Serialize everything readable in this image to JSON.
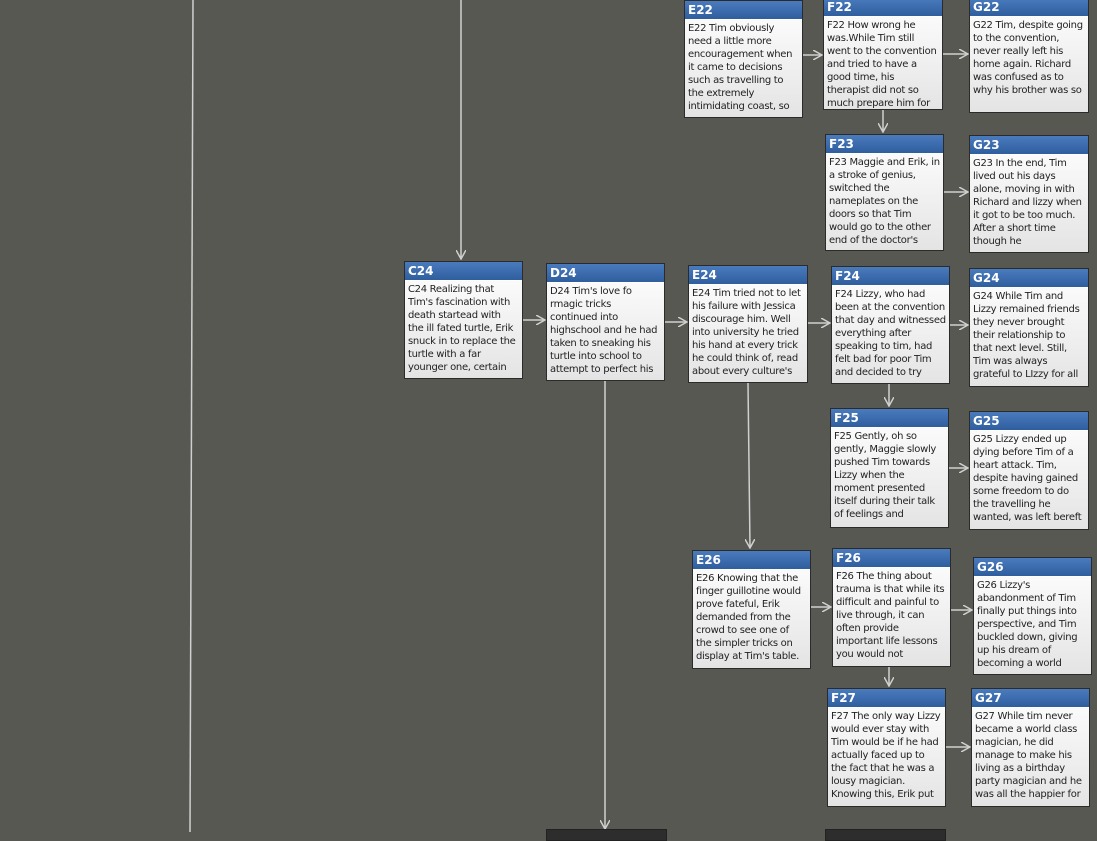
{
  "nodes": [
    {
      "id": "E22",
      "text": "E22 Tim obviously need a little more encouragement when it came to decisions such as travelling to the extremely intimidating coast, so"
    },
    {
      "id": "F22",
      "text": "F22 How wrong he was.While Tim still went to the convention and tried to have a good time, his therapist did not so much prepare him for"
    },
    {
      "id": "G22",
      "text": "G22 Tim, despite going to the convention, never really left his home again. Richard was confused as to why his brother was so"
    },
    {
      "id": "F23",
      "text": "F23 Maggie and Erik, in a stroke of genius, switched the nameplates on the doors so that Tim would go to the other end of the doctor's"
    },
    {
      "id": "G23",
      "text": "G23 In the end, Tim lived out his days alone, moving in with Richard and lizzy when it got to be too much. After a short time though he"
    },
    {
      "id": "C24",
      "text": "C24 Realizing that Tim's fascination with death startead with the ill fated turtle, Erik snuck in to replace the turtle with a far younger one, certain"
    },
    {
      "id": "D24",
      "text": "D24 Tim's love fo rmagic tricks continued into highschool and he had taken to sneaking his turtle into school to attempt to perfect his"
    },
    {
      "id": "E24",
      "text": "E24 Tim tried not to let his failure with Jessica discourage him. Well into university he tried his hand at every trick he could think of, read about every culture's"
    },
    {
      "id": "F24",
      "text": "F24 Lizzy, who had been at the convention that day and witnessed everything after speaking to tim, had felt bad for poor Tim and decided to try"
    },
    {
      "id": "G24",
      "text": "G24 While Tim and Lizzy remained friends they never brought their relationship to that next level. Still, Tim was always grateful to LIzzy for all"
    },
    {
      "id": "F25",
      "text": "F25 Gently, oh so gently, Maggie slowly pushed Tim towards Lizzy when the moment presented itself during their talk of feelings and"
    },
    {
      "id": "G25",
      "text": "G25 Lizzy ended up dying before Tim of a heart attack. Tim, despite having gained some freedom to do the travelling he wanted, was left bereft"
    },
    {
      "id": "E26",
      "text": "E26 Knowing that the finger guillotine would prove fateful, Erik demanded from the crowd to see one of the simpler tricks on display at Tim's table."
    },
    {
      "id": "F26",
      "text": "F26 The thing about trauma is that while its difficult and painful to live through, it can often provide important life lessons you would not"
    },
    {
      "id": "G26",
      "text": "G26 Lizzy's abandonment of Tim finally put things into perspective, and Tim buckled down, giving up his dream of becoming a world"
    },
    {
      "id": "F27",
      "text": "F27 The only way Lizzy would ever stay with Tim would be if he had actually faced up to the fact that he was a lousy magician. Knowing this, Erik put"
    },
    {
      "id": "G27",
      "text": "G27 While tim never became a world class magician, he did manage to make his living as a birthday party magician and he was all the happier for"
    }
  ]
}
